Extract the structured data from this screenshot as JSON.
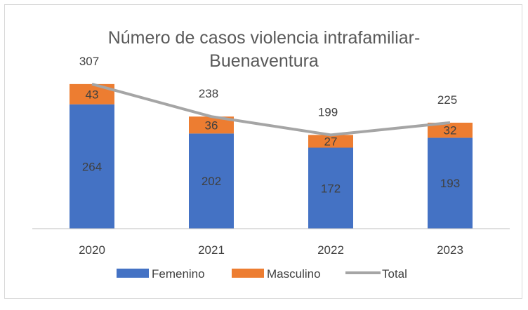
{
  "chart_data": {
    "type": "bar",
    "stacked": true,
    "title_lines": [
      "Número de casos violencia intrafamiliar-",
      "Buenaventura"
    ],
    "categories": [
      "2020",
      "2021",
      "2022",
      "2023"
    ],
    "series": [
      {
        "name": "Femenino",
        "values": [
          264,
          202,
          172,
          193
        ],
        "color": "#4472c4"
      },
      {
        "name": "Masculino",
        "values": [
          43,
          36,
          27,
          32
        ],
        "color": "#ed7d31"
      }
    ],
    "line_series": {
      "name": "Total",
      "values": [
        307,
        238,
        199,
        225
      ],
      "color": "#a5a5a5"
    },
    "ylim": [
      0,
      350
    ],
    "grid": false,
    "legend": "bottom"
  }
}
